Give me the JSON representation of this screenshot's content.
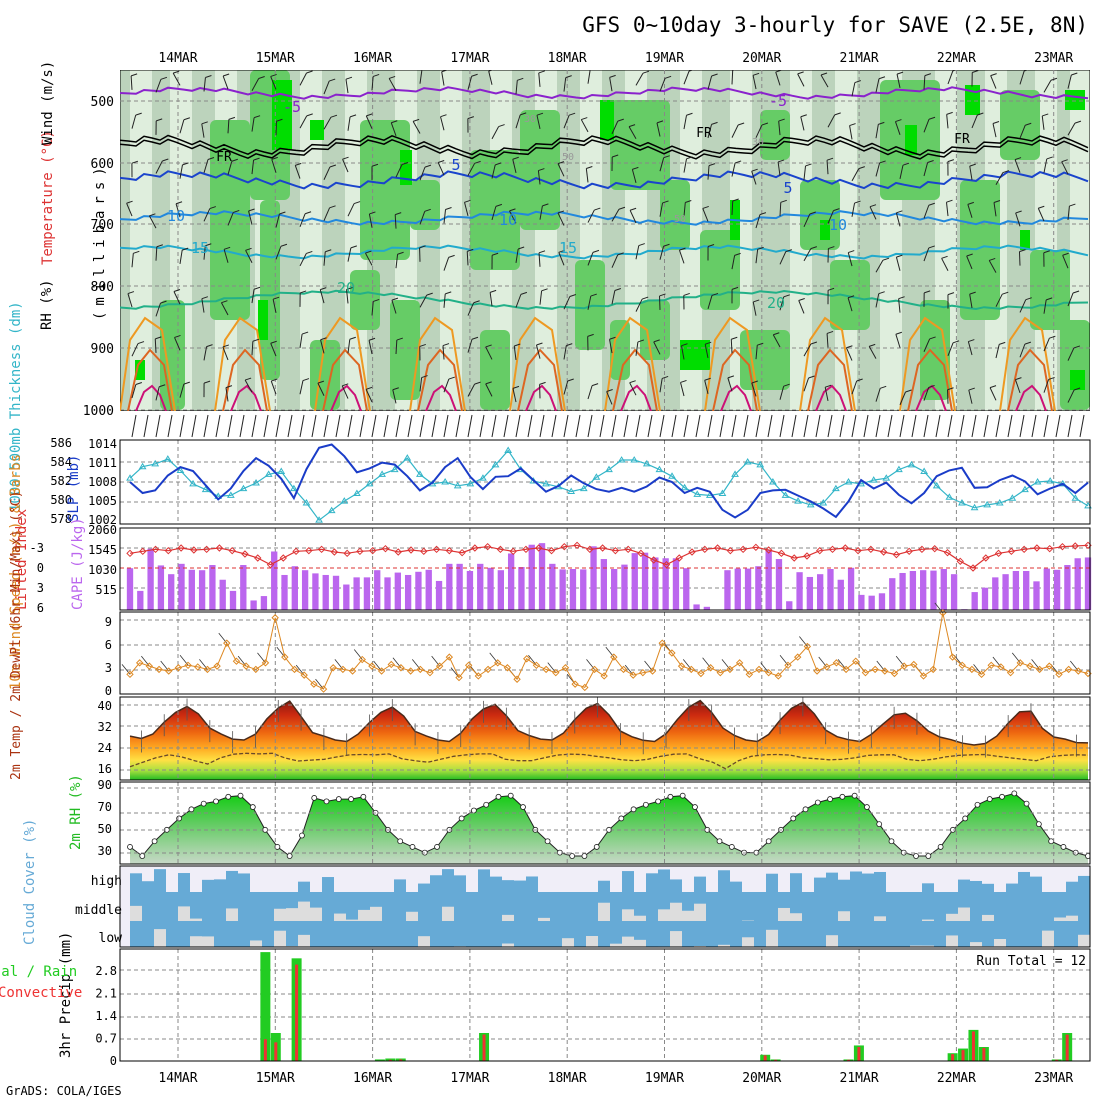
{
  "page": {
    "title": "GFS 0~10day 3-hourly for SAVE (2.5E, 8N)",
    "credit": "GrADS: COLA/IGES"
  },
  "colors": {
    "rh_light": "#dfeedd",
    "rh_mid": "#bcd3bc",
    "rh_green": "#66cc66",
    "rh_bright": "#00dd00",
    "slp": "#1a3cc8",
    "thickness": "#33b5c8",
    "cape": "#bb66ee",
    "lifted": "#dd3333",
    "wind": "#dd8822",
    "rh2m": "#22bb22",
    "cloud": "#66aad6",
    "cloud_bg": "#f0eef8",
    "precip_total": "#22cc22",
    "precip_conv": "#ee3333"
  },
  "axis": {
    "date_labels": [
      "14MAR",
      "15MAR",
      "16MAR",
      "17MAR",
      "18MAR",
      "19MAR",
      "20MAR",
      "21MAR",
      "22MAR",
      "23MAR"
    ]
  },
  "panels": {
    "upper_air": {
      "ylabel_rh": "RH (%)",
      "ylabel_temp": "Temperature (°C)",
      "ylabel_wind": "Wind (m/s)",
      "ylabel_units": "(millibars)",
      "pressure_ticks": [
        "500",
        "600",
        "700",
        "800",
        "900",
        "1000"
      ],
      "contour_labels": {
        "minus5": "-5",
        "fr": "FR",
        "c5": "5",
        "c10": "10",
        "c15": "15",
        "c20": "20",
        "rh30": "30",
        "rh50": "50"
      }
    },
    "slp_thickness": {
      "ylabel_thick": "1000-500mb Thickness (dm)",
      "ylabel_slp": "SLP (mb)",
      "thick_ticks": [
        "586",
        "584",
        "582",
        "580",
        "578"
      ],
      "slp_ticks": [
        "1014",
        "1011",
        "1008",
        "1005",
        "1002"
      ]
    },
    "cape_li": {
      "ylabel_li": "Lifted Index",
      "ylabel_cape": "CAPE (J/kg)",
      "li_ticks": [
        "-3",
        "0",
        "3",
        "6"
      ],
      "cape_ticks": [
        "2060",
        "1545",
        "1030",
        "515"
      ]
    },
    "wind10": {
      "ylabel": "10m Wind Speed (m/s) & Barbs",
      "ticks": [
        "9",
        "6",
        "3",
        "0"
      ]
    },
    "temp2m": {
      "ylabel": "2m Temp / 2m DewPt (6hr Min/Max) (°C)",
      "ticks": [
        "40",
        "32",
        "24",
        "16"
      ]
    },
    "rh2m": {
      "ylabel": "2m RH (%)",
      "ticks": [
        "90",
        "70",
        "50",
        "30"
      ]
    },
    "cloud": {
      "ylabel": "Cloud Cover (%)",
      "levels": [
        "high",
        "middle",
        "low"
      ]
    },
    "precip": {
      "ylabel": "3hr Precip (mm)",
      "legend_total": "Total / Rain",
      "legend_conv": "Convective",
      "run_total": "Run Total = 12",
      "ticks": [
        "2.8",
        "2.1",
        "1.4",
        "0.7",
        "0"
      ]
    }
  },
  "chart_data": [
    {
      "type": "line",
      "title": "SLP and 1000-500mb Thickness",
      "x": "3-hourly steps from 13MAR 12Z (0..76)",
      "series": [
        {
          "name": "SLP (mb)",
          "values": [
            1008.5,
            1006.8,
            1007.2,
            1009.5,
            1010.8,
            1010.2,
            1008.0,
            1005.8,
            1007.5,
            1010.2,
            1012.2,
            1011.0,
            1009.0,
            1006.0,
            1010.5,
            1013.8,
            1014.3,
            1012.5,
            1010.0,
            1010.6,
            1011.5,
            1011.2,
            1009.4,
            1007.2,
            1008.4,
            1010.8,
            1012.2,
            1009.3,
            1007.4,
            1009.3,
            1009.4,
            1010.6,
            1008.8,
            1007.0,
            1007.9,
            1009.5,
            1008.3,
            1007.4,
            1007.0,
            1007.6,
            1007.0,
            1007.8,
            1009.2,
            1008.5,
            1006.8,
            1007.6,
            1007.0,
            1004.2,
            1003.0,
            1004.2,
            1006.8,
            1007.2,
            1007.3,
            1006.4,
            1005.5,
            1004.4,
            1003.1,
            1005.5,
            1008.8,
            1007.5,
            1008.4,
            1006.5,
            1005.2,
            1006.8,
            1009.4,
            1010.3,
            1010.7,
            1007.6,
            1007.7,
            1008.8,
            1009.5,
            1008.6,
            1006.6,
            1007.5,
            1008.2,
            1006.8,
            1008.4
          ]
        },
        {
          "name": "1000-500mb Thickness (dm)",
          "values": [
            582.6,
            583.8,
            584.1,
            584.6,
            583.4,
            582.0,
            581.4,
            580.7,
            580.8,
            581.5,
            582.1,
            583.0,
            583.3,
            581.5,
            580.0,
            578.2,
            579.2,
            580.2,
            581.0,
            582.0,
            583.0,
            583.5,
            584.7,
            583.0,
            582.0,
            582.2,
            581.8,
            582.0,
            582.6,
            584.0,
            585.5,
            583.5,
            582.3,
            582.0,
            581.7,
            581.2,
            581.5,
            582.7,
            583.5,
            584.5,
            584.5,
            584.1,
            583.5,
            582.8,
            581.6,
            580.9,
            580.8,
            581.0,
            583.0,
            584.3,
            584.0,
            582.2,
            580.8,
            580.2,
            579.8,
            580.0,
            581.5,
            582.2,
            582.0,
            582.4,
            582.6,
            583.5,
            584.0,
            583.3,
            581.8,
            580.6,
            580.0,
            579.5,
            579.8,
            580.0,
            580.5,
            581.4,
            582.2,
            582.3,
            582.0,
            580.5,
            579.7
          ]
        }
      ]
    },
    {
      "type": "bar",
      "title": "CAPE (J/kg) and Lifted Index",
      "series": [
        {
          "name": "CAPE (J/kg)",
          "values": [
            1050,
            480,
            1540,
            1120,
            900,
            1160,
            1010,
            1000,
            1130,
            760,
            480,
            1130,
            240,
            350,
            1470,
            880,
            1100,
            1000,
            920,
            880,
            860,
            640,
            820,
            820,
            1000,
            820,
            940,
            880,
            960,
            1010,
            730,
            1160,
            1160,
            980,
            1160,
            1060,
            1000,
            1420,
            1080,
            1640,
            1680,
            1160,
            1020,
            1030,
            1020,
            1600,
            1280,
            1030,
            1140,
            1430,
            1440,
            1320,
            1300,
            1300,
            1050,
            140,
            80,
            0,
            1000,
            1040,
            1040,
            1100,
            1510,
            1280,
            220,
            950,
            830,
            900,
            1030,
            760,
            1060,
            380,
            360,
            420,
            800,
            930,
            980,
            1000,
            990,
            1030,
            900,
            20,
            450,
            560,
            820,
            900,
            980,
            980,
            720,
            1040,
            1010,
            1130,
            1300,
            1320
          ]
        },
        {
          "name": "Lifted Index",
          "values": [
            -2.2,
            -2.5,
            -2.8,
            -2.6,
            -3.0,
            -2.7,
            -2.8,
            -3.0,
            -2.6,
            -2.1,
            -1.5,
            -0.5,
            -1.5,
            -2.5,
            -2.6,
            -2.8,
            -2.4,
            -2.2,
            -2.5,
            -2.6,
            -2.9,
            -2.4,
            -2.7,
            -2.5,
            -2.8,
            -2.6,
            -2.3,
            -3.0,
            -3.2,
            -2.8,
            -2.5,
            -2.8,
            -3.0,
            -2.6,
            -3.2,
            -3.4,
            -2.8,
            -3.0,
            -2.6,
            -2.8,
            -2.2,
            -1.2,
            -0.5,
            -1.5,
            -2.4,
            -2.8,
            -3.0,
            -2.6,
            -2.8,
            -3.1,
            -2.7,
            -2.2,
            -1.5,
            -1.8,
            -2.6,
            -2.8,
            -3.0,
            -2.6,
            -2.8,
            -2.4,
            -2.0,
            -2.5,
            -2.8,
            -2.9,
            -2.3,
            -1.0,
            0.0,
            -1.5,
            -2.2,
            -2.5,
            -2.8,
            -3.0,
            -2.9,
            -3.2,
            -3.3,
            -3.4
          ]
        }
      ]
    },
    {
      "type": "line",
      "title": "10m Wind Speed (m/s)",
      "series": [
        {
          "name": "10m Wind Speed (m/s)",
          "values": [
            2.4,
            3.8,
            3.4,
            3.0,
            2.8,
            3.2,
            3.5,
            3.3,
            3.0,
            3.4,
            6.2,
            4.0,
            3.4,
            3.0,
            3.8,
            9.3,
            4.5,
            3.0,
            2.3,
            1.2,
            0.6,
            3.2,
            3.0,
            2.8,
            4.2,
            3.4,
            2.8,
            3.6,
            3.2,
            2.8,
            3.0,
            2.6,
            3.4,
            4.5,
            2.0,
            3.5,
            2.2,
            3.0,
            3.8,
            3.2,
            1.8,
            4.3,
            3.5,
            3.0,
            2.6,
            3.2,
            1.2,
            0.8,
            3.0,
            2.2,
            4.5,
            3.0,
            2.3,
            2.6,
            2.8,
            6.2,
            5.0,
            3.4,
            3.0,
            2.5,
            3.2,
            2.6,
            3.0,
            3.8,
            2.4,
            3.0,
            2.6,
            2.2,
            3.5,
            4.5,
            5.8,
            2.8,
            3.3,
            3.8,
            3.0,
            4.0,
            2.6,
            3.0,
            2.8,
            2.5,
            3.4,
            3.6,
            2.2,
            3.0,
            9.9,
            4.5,
            3.5,
            3.0,
            2.4,
            3.5,
            3.3,
            2.6,
            3.8,
            3.4,
            3.0,
            3.4,
            2.4,
            3.0,
            2.8,
            2.5
          ]
        }
      ]
    },
    {
      "type": "area",
      "title": "2m Temp / 2m DewPt (°C)",
      "series": [
        {
          "name": "2m Temp (°C)",
          "values": [
            28.8,
            28.0,
            29.5,
            33.5,
            36.8,
            38.8,
            36.3,
            31.5,
            29.5,
            27.8,
            27.5,
            29.5,
            34.6,
            38.3,
            40.6,
            35.4,
            30.0,
            28.8,
            27.5,
            27.0,
            29.5,
            33.4,
            36.8,
            38.6,
            35.6,
            30.4,
            28.8,
            27.5,
            27.0,
            29.8,
            34.6,
            38.0,
            39.5,
            35.7,
            30.7,
            29.0,
            27.8,
            27.5,
            29.8,
            34.4,
            38.2,
            39.8,
            36.0,
            30.5,
            28.6,
            27.4,
            27.0,
            29.6,
            34.4,
            38.6,
            40.8,
            36.8,
            31.5,
            29.0,
            27.5,
            27.0,
            29.4,
            34.2,
            38.2,
            40.2,
            36.3,
            30.8,
            28.6,
            27.6,
            27.0,
            29.4,
            32.8,
            36.0,
            36.5,
            34.0,
            30.5,
            28.5,
            27.6,
            26.4,
            25.8,
            26.3,
            28.8,
            33.2,
            37.0,
            37.2,
            31.4,
            28.5,
            27.8,
            26.6,
            26.5
          ]
        },
        {
          "name": "2m DewPt (°C)",
          "values": [
            18.5,
            20.0,
            21.5,
            22.5,
            21.8,
            20.5,
            19.4,
            21.5,
            22.7,
            23.0,
            22.8,
            23.0,
            21.4,
            20.4,
            20.7,
            21.0,
            21.8,
            22.5,
            22.6,
            22.5,
            22.8,
            21.2,
            20.5,
            20.0,
            21.0,
            22.0,
            22.5,
            22.8,
            22.8,
            21.0,
            20.5,
            20.5,
            21.5,
            22.4,
            22.7,
            22.6,
            22.0,
            21.5,
            20.8,
            20.5,
            21.0,
            22.0,
            22.7,
            22.8,
            21.2,
            20.0,
            17.8,
            20.5,
            22.0,
            22.5,
            22.6,
            22.4,
            21.5,
            21.2,
            20.8,
            21.0,
            21.5,
            22.3,
            22.5,
            22.5,
            21.0,
            20.5,
            21.0,
            21.8,
            22.3,
            22.5,
            22.6,
            22.0,
            21.5,
            21.0,
            20.5,
            21.8,
            22.3,
            22.5,
            22.4
          ]
        }
      ]
    },
    {
      "type": "area",
      "title": "2m RH (%)",
      "series": [
        {
          "name": "2m RH (%)",
          "values": [
            35,
            27,
            40,
            50,
            60,
            68,
            73,
            75,
            79,
            80,
            70,
            50,
            35,
            27,
            45,
            78,
            75,
            77,
            77,
            79,
            65,
            50,
            40,
            35,
            30,
            35,
            50,
            60,
            67,
            72,
            79,
            80,
            70,
            50,
            40,
            30,
            27,
            27,
            35,
            50,
            60,
            68,
            72,
            75,
            79,
            80,
            70,
            50,
            40,
            35,
            30,
            30,
            40,
            50,
            60,
            68,
            74,
            77,
            79,
            80,
            70,
            55,
            40,
            30,
            27,
            27,
            35,
            50,
            60,
            72,
            77,
            79,
            82,
            73,
            55,
            40,
            35,
            30,
            27
          ]
        }
      ]
    },
    {
      "type": "bar",
      "title": "3hr Precip (mm)",
      "series": [
        {
          "name": "Total / Rain (mm)",
          "values": [
            0,
            0,
            0,
            0,
            0,
            0,
            0,
            0,
            0,
            0,
            0,
            0,
            0,
            3.5,
            0.9,
            0,
            3.3,
            0,
            0,
            0,
            0,
            0,
            0,
            0,
            0.05,
            0.08,
            0.08,
            0,
            0,
            0,
            0,
            0,
            0,
            0,
            0.9,
            0,
            0,
            0,
            0,
            0,
            0,
            0,
            0,
            0,
            0,
            0,
            0,
            0,
            0,
            0,
            0,
            0,
            0,
            0,
            0,
            0,
            0,
            0,
            0,
            0,
            0,
            0.2,
            0.05,
            0,
            0,
            0,
            0,
            0,
            0,
            0.05,
            0.5,
            0,
            0,
            0,
            0,
            0,
            0,
            0,
            0,
            0.25,
            0.4,
            1.0,
            0.45,
            0,
            0,
            0,
            0,
            0,
            0,
            0.05,
            0.9,
            0,
            0
          ]
        },
        {
          "name": "Convective (mm)",
          "values": [
            0,
            0,
            0,
            0,
            0,
            0,
            0,
            0,
            0,
            0,
            0,
            0,
            0,
            0.7,
            0.6,
            0,
            3.1,
            0,
            0,
            0,
            0,
            0,
            0,
            0,
            0,
            0.04,
            0.05,
            0,
            0,
            0,
            0,
            0,
            0,
            0,
            0.85,
            0,
            0,
            0,
            0,
            0,
            0,
            0,
            0,
            0,
            0,
            0,
            0,
            0,
            0,
            0,
            0,
            0,
            0,
            0,
            0,
            0,
            0,
            0,
            0,
            0,
            0,
            0.18,
            0.04,
            0,
            0,
            0,
            0,
            0,
            0,
            0.04,
            0.45,
            0,
            0,
            0,
            0,
            0,
            0,
            0,
            0,
            0.22,
            0.35,
            0.95,
            0.42,
            0,
            0,
            0,
            0,
            0,
            0,
            0.04,
            0.85,
            0,
            0
          ]
        }
      ]
    }
  ]
}
